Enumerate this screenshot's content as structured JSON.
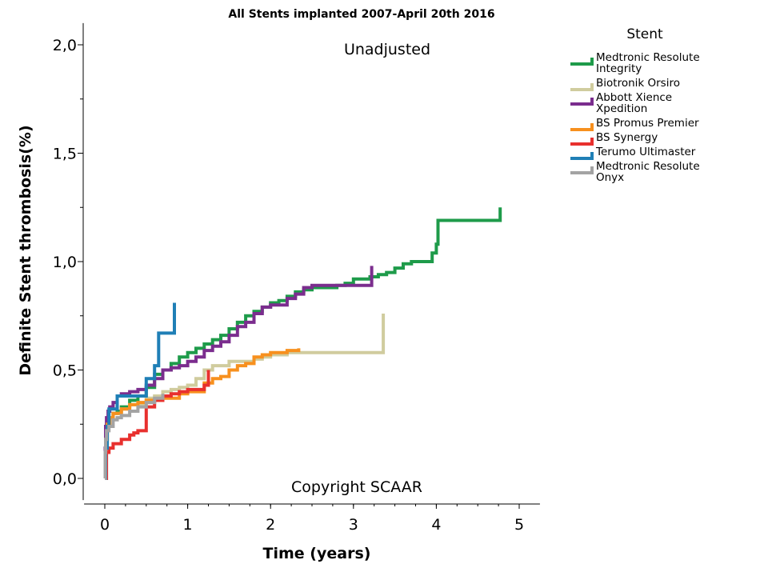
{
  "chart_data": {
    "type": "line",
    "step": true,
    "title": "All Stents implanted 2007-April 20th 2016",
    "xlabel": "Time (years)",
    "ylabel": "Definite Stent thrombosis(%)",
    "xlim": [
      -0.25,
      5.25
    ],
    "ylim": [
      -0.1,
      2.1
    ],
    "xticks": [
      0,
      1,
      2,
      3,
      4,
      5
    ],
    "xtick_labels": [
      "0",
      "1",
      "2",
      "3",
      "4",
      "5"
    ],
    "yticks": [
      0,
      0.5,
      1,
      1.5,
      2
    ],
    "ytick_labels": [
      "0,0",
      "0,5",
      "1,0",
      "1,5",
      "2,0"
    ],
    "grid": false,
    "legend_title": "Stent",
    "legend_position": "right",
    "annotations": [
      "Unadjusted",
      "Copyright SCAAR"
    ],
    "series": [
      {
        "name": [
          "Medtronic Resolute",
          "Integrity"
        ],
        "color": "#1e9b4a",
        "x": [
          0,
          0.005,
          0.01,
          0.02,
          0.03,
          0.05,
          0.1,
          0.15,
          0.2,
          0.3,
          0.4,
          0.5,
          0.6,
          0.7,
          0.8,
          0.9,
          1.0,
          1.1,
          1.2,
          1.3,
          1.4,
          1.5,
          1.6,
          1.7,
          1.8,
          1.9,
          2.0,
          2.1,
          2.2,
          2.3,
          2.4,
          2.5,
          2.6,
          2.7,
          2.8,
          2.9,
          3.0,
          3.1,
          3.2,
          3.3,
          3.4,
          3.5,
          3.6,
          3.7,
          3.8,
          3.9,
          3.95,
          4.0,
          4.02,
          4.5,
          4.75,
          4.77
        ],
        "y": [
          0,
          0.12,
          0.2,
          0.24,
          0.26,
          0.28,
          0.3,
          0.31,
          0.33,
          0.36,
          0.38,
          0.42,
          0.48,
          0.5,
          0.53,
          0.56,
          0.58,
          0.6,
          0.62,
          0.64,
          0.66,
          0.69,
          0.72,
          0.75,
          0.77,
          0.79,
          0.81,
          0.82,
          0.84,
          0.86,
          0.87,
          0.88,
          0.88,
          0.88,
          0.89,
          0.9,
          0.92,
          0.92,
          0.93,
          0.94,
          0.95,
          0.97,
          0.99,
          1.0,
          1.0,
          1.0,
          1.04,
          1.08,
          1.19,
          1.19,
          1.19,
          1.25
        ]
      },
      {
        "name": [
          "Biotronik Orsiro"
        ],
        "color": "#d0cc9e",
        "x": [
          0,
          0.01,
          0.03,
          0.06,
          0.1,
          0.2,
          0.3,
          0.5,
          0.6,
          0.7,
          0.8,
          0.9,
          1.0,
          1.1,
          1.2,
          1.3,
          1.5,
          1.7,
          1.8,
          1.9,
          2.0,
          2.2,
          2.5,
          2.8,
          3.0,
          3.2,
          3.34,
          3.36
        ],
        "y": [
          0,
          0.18,
          0.25,
          0.28,
          0.3,
          0.32,
          0.34,
          0.37,
          0.38,
          0.4,
          0.41,
          0.42,
          0.43,
          0.46,
          0.5,
          0.52,
          0.54,
          0.54,
          0.55,
          0.56,
          0.57,
          0.58,
          0.58,
          0.58,
          0.58,
          0.58,
          0.58,
          0.76
        ]
      },
      {
        "name": [
          "Abbott Xience",
          "Xpedition"
        ],
        "color": "#7b2d8e",
        "x": [
          0,
          0.005,
          0.01,
          0.02,
          0.04,
          0.06,
          0.1,
          0.15,
          0.2,
          0.3,
          0.4,
          0.5,
          0.6,
          0.7,
          0.8,
          0.9,
          1.0,
          1.1,
          1.2,
          1.3,
          1.4,
          1.5,
          1.6,
          1.7,
          1.8,
          1.9,
          2.0,
          2.1,
          2.2,
          2.3,
          2.4,
          2.5,
          2.6,
          2.7,
          2.8,
          2.9,
          3.0,
          3.1,
          3.2,
          3.22
        ],
        "y": [
          0,
          0.14,
          0.24,
          0.28,
          0.31,
          0.33,
          0.35,
          0.38,
          0.39,
          0.4,
          0.41,
          0.43,
          0.46,
          0.5,
          0.51,
          0.52,
          0.54,
          0.56,
          0.59,
          0.61,
          0.63,
          0.66,
          0.7,
          0.72,
          0.76,
          0.79,
          0.8,
          0.8,
          0.83,
          0.85,
          0.88,
          0.89,
          0.89,
          0.89,
          0.89,
          0.89,
          0.89,
          0.89,
          0.89,
          0.98
        ]
      },
      {
        "name": [
          "BS Promus Premier"
        ],
        "color": "#f7901e",
        "x": [
          0,
          0.01,
          0.03,
          0.06,
          0.1,
          0.2,
          0.3,
          0.4,
          0.5,
          0.7,
          0.9,
          1.0,
          1.2,
          1.3,
          1.4,
          1.5,
          1.6,
          1.7,
          1.8,
          1.9,
          2.0,
          2.1,
          2.2,
          2.3,
          2.34
        ],
        "y": [
          0,
          0.18,
          0.25,
          0.28,
          0.3,
          0.32,
          0.34,
          0.35,
          0.36,
          0.37,
          0.39,
          0.4,
          0.44,
          0.46,
          0.47,
          0.5,
          0.52,
          0.53,
          0.56,
          0.57,
          0.58,
          0.58,
          0.59,
          0.59,
          0.6
        ]
      },
      {
        "name": [
          "BS Synergy"
        ],
        "color": "#e8302e",
        "x": [
          0,
          0.02,
          0.05,
          0.1,
          0.2,
          0.3,
          0.35,
          0.4,
          0.5,
          0.6,
          0.7,
          0.8,
          0.9,
          1.0,
          1.1,
          1.2,
          1.25
        ],
        "y": [
          0,
          0.12,
          0.14,
          0.16,
          0.18,
          0.2,
          0.21,
          0.22,
          0.33,
          0.36,
          0.38,
          0.39,
          0.4,
          0.41,
          0.41,
          0.43,
          0.5
        ]
      },
      {
        "name": [
          "Terumo Ultimaster"
        ],
        "color": "#1f7fb6",
        "x": [
          0,
          0.01,
          0.03,
          0.05,
          0.15,
          0.3,
          0.4,
          0.5,
          0.6,
          0.65,
          0.7,
          0.8,
          0.84
        ],
        "y": [
          0,
          0.14,
          0.24,
          0.32,
          0.38,
          0.38,
          0.38,
          0.46,
          0.52,
          0.67,
          0.67,
          0.67,
          0.81
        ]
      },
      {
        "name": [
          "Medtronic Resolute",
          "Onyx"
        ],
        "color": "#a3a3a3",
        "x": [
          0,
          0.005,
          0.01,
          0.02,
          0.05,
          0.1,
          0.15,
          0.2,
          0.3,
          0.4,
          0.5,
          0.6,
          0.7
        ],
        "y": [
          0,
          0.12,
          0.18,
          0.22,
          0.24,
          0.27,
          0.28,
          0.29,
          0.31,
          0.33,
          0.35,
          0.37,
          0.39
        ]
      }
    ]
  }
}
